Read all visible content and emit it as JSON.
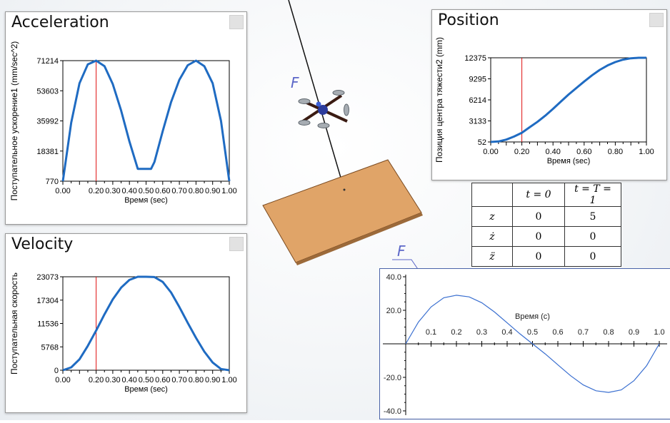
{
  "acceleration": {
    "title": "Acceleration",
    "ylabel": "Поступательное ускорение1 (mm/sec^2)",
    "xlabel": "Время (sec)",
    "yticks": [
      "71214",
      "53603",
      "35992",
      "18381",
      "770"
    ],
    "xticks": [
      "0.00",
      "0.20",
      "0.30",
      "0.40",
      "0.50",
      "0.60",
      "0.70",
      "0.80",
      "0.90",
      "1.00"
    ],
    "marker_x": 0.2,
    "chart_data": {
      "type": "line",
      "x": [
        0.0,
        0.05,
        0.1,
        0.15,
        0.2,
        0.25,
        0.3,
        0.35,
        0.4,
        0.45,
        0.47,
        0.5,
        0.53,
        0.55,
        0.6,
        0.65,
        0.7,
        0.75,
        0.8,
        0.85,
        0.9,
        0.95,
        1.0
      ],
      "y": [
        770,
        35000,
        58000,
        69000,
        71214,
        68000,
        57500,
        42000,
        24000,
        8000,
        8000,
        8000,
        8000,
        12000,
        30000,
        47000,
        60000,
        68500,
        71214,
        68000,
        58000,
        36000,
        770
      ],
      "ylim": [
        770,
        71214
      ],
      "xlim": [
        0,
        1
      ]
    }
  },
  "velocity": {
    "title": "Velocity",
    "ylabel": "Поступательная скорость",
    "xlabel": "Время (sec)",
    "yticks": [
      "23073",
      "17304",
      "11536",
      "5768",
      "0"
    ],
    "xticks": [
      "0.00",
      "0.20",
      "0.30",
      "0.40",
      "0.50",
      "0.60",
      "0.70",
      "0.80",
      "0.90",
      "1.00"
    ],
    "marker_x": 0.2,
    "chart_data": {
      "type": "line",
      "x": [
        0.0,
        0.05,
        0.1,
        0.15,
        0.2,
        0.25,
        0.3,
        0.35,
        0.4,
        0.45,
        0.5,
        0.55,
        0.6,
        0.65,
        0.7,
        0.75,
        0.8,
        0.85,
        0.9,
        0.95,
        1.0
      ],
      "y": [
        0,
        700,
        2700,
        6000,
        9800,
        13800,
        17500,
        20400,
        22300,
        23073,
        23073,
        23000,
        21800,
        19200,
        15600,
        11700,
        8000,
        4600,
        1900,
        300,
        0
      ],
      "ylim": [
        0,
        23073
      ],
      "xlim": [
        0,
        1
      ]
    }
  },
  "position": {
    "title": "Position",
    "ylabel": "Позиция центра тяжести2 (mm)",
    "xlabel": "Время (sec)",
    "yticks": [
      "12375",
      "9295",
      "6214",
      "3133",
      "52"
    ],
    "xticks": [
      "0.00",
      "0.20",
      "0.40",
      "0.60",
      "0.80",
      "1.00"
    ],
    "marker_x": 0.2,
    "chart_data": {
      "type": "line",
      "x": [
        0.0,
        0.05,
        0.1,
        0.15,
        0.2,
        0.25,
        0.3,
        0.35,
        0.4,
        0.45,
        0.5,
        0.55,
        0.6,
        0.65,
        0.7,
        0.75,
        0.8,
        0.85,
        0.9,
        0.95,
        1.0
      ],
      "y": [
        52,
        120,
        400,
        850,
        1400,
        2200,
        3000,
        3900,
        4900,
        5950,
        7000,
        7950,
        8900,
        9800,
        10600,
        11250,
        11750,
        12100,
        12300,
        12375,
        12375
      ],
      "ylim": [
        52,
        12375
      ],
      "xlim": [
        0,
        1
      ]
    }
  },
  "conditions_table": {
    "headers": [
      "",
      "t = 0",
      "t = T = 1"
    ],
    "rows": [
      [
        "z",
        "0",
        "5"
      ],
      [
        "ż",
        "0",
        "0"
      ],
      [
        "z̈",
        "0",
        "0"
      ]
    ]
  },
  "force": {
    "label": "F",
    "xlabel": "Время (c)",
    "yticks": [
      "40.0",
      "20.0",
      "-20.0",
      "-40.0"
    ],
    "xticks": [
      "0.1",
      "0.2",
      "0.3",
      "0.4",
      "0.5",
      "0.6",
      "0.7",
      "0.8",
      "0.9",
      "1.0"
    ],
    "chart_data": {
      "type": "line",
      "x": [
        0.0,
        0.05,
        0.1,
        0.15,
        0.2,
        0.25,
        0.3,
        0.35,
        0.4,
        0.45,
        0.5,
        0.55,
        0.6,
        0.65,
        0.7,
        0.75,
        0.8,
        0.85,
        0.9,
        0.95,
        1.0
      ],
      "y": [
        0,
        13,
        22,
        27.5,
        29,
        28,
        24.5,
        19,
        12.5,
        6,
        0,
        -6,
        -12.5,
        -19,
        -24.5,
        -28,
        -29,
        -27.5,
        -22,
        -13,
        0
      ],
      "ylim": [
        -40,
        40
      ],
      "xlim": [
        0,
        1
      ]
    }
  },
  "scene": {
    "force_label": "F",
    "colors": {
      "curve": "#1f6bc2",
      "marker": "#e01010",
      "force_curve": "#3a6fd0",
      "board": "#e0a468"
    }
  }
}
